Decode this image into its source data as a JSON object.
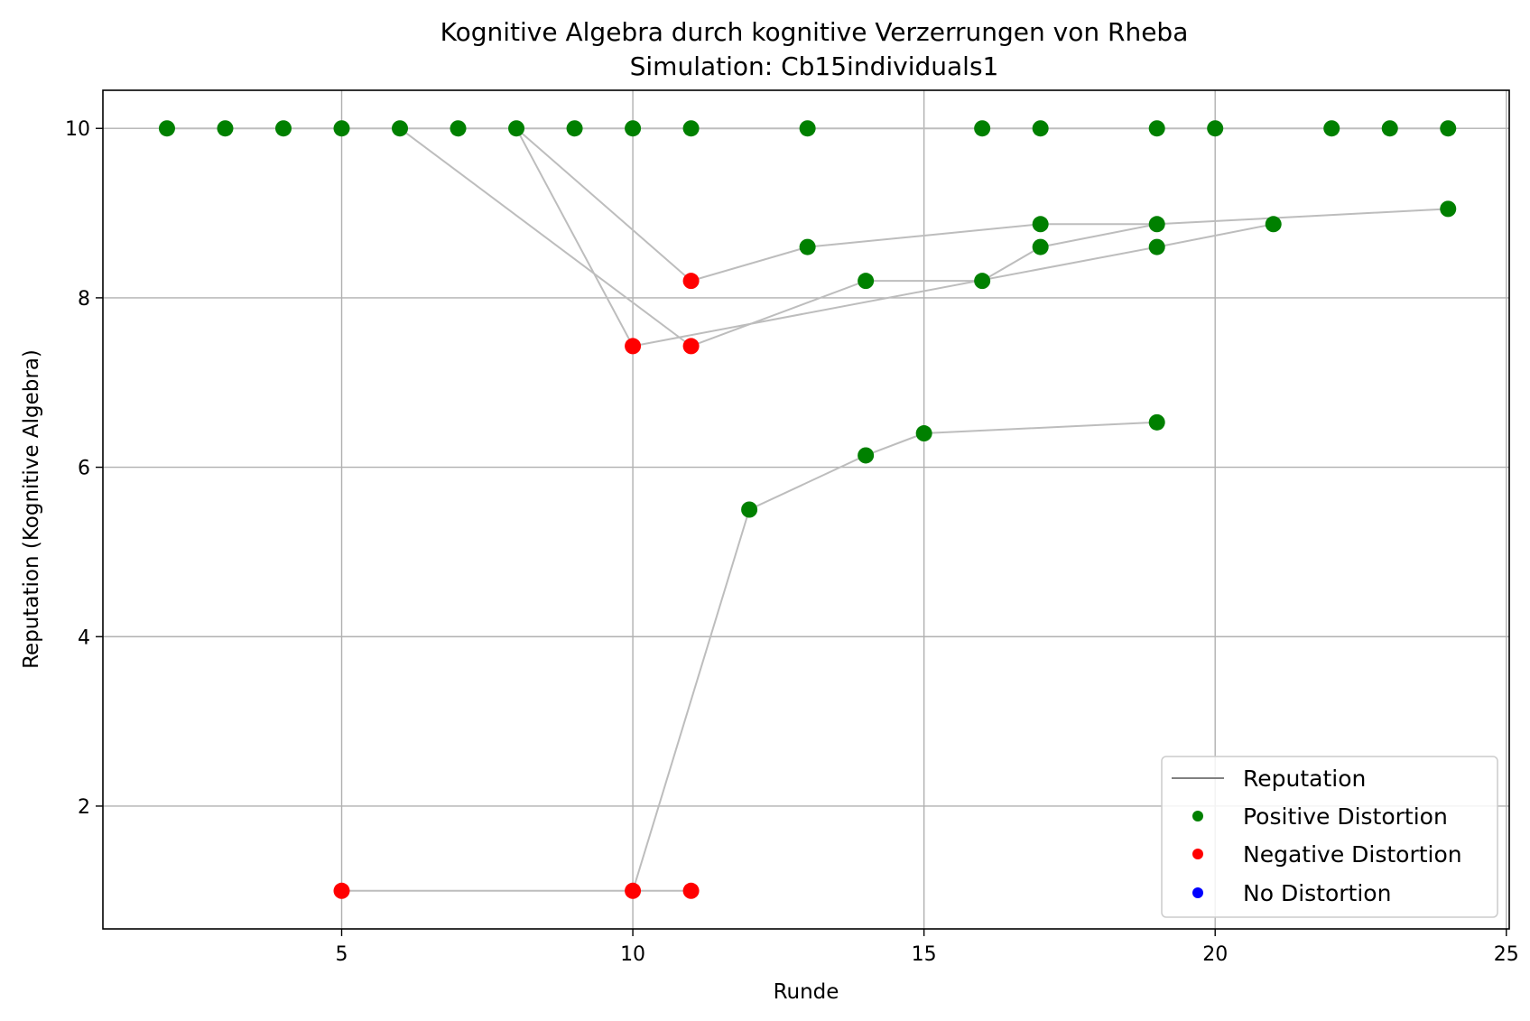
{
  "chart_data": {
    "type": "line",
    "title": "Kognitive Algebra durch kognitive Verzerrungen von Rheba",
    "subtitle": "Simulation: Cb15individuals1",
    "xlabel": "Runde",
    "ylabel": "Reputation (Kognitive Algebra)",
    "xlim": [
      0.9,
      25.05
    ],
    "ylim": [
      0.55,
      10.45
    ],
    "xticks": [
      5,
      10,
      15,
      20,
      25
    ],
    "yticks": [
      2,
      4,
      6,
      8,
      10
    ],
    "grid": true,
    "legend": {
      "position": "lower-right",
      "entries": [
        {
          "label": "Reputation",
          "kind": "line",
          "color": "#808080"
        },
        {
          "label": "Positive Distortion",
          "kind": "marker",
          "color": "#008000"
        },
        {
          "label": "Negative Distortion",
          "kind": "marker",
          "color": "#ff0000"
        },
        {
          "label": "No Distortion",
          "kind": "marker",
          "color": "#0000ff"
        }
      ]
    },
    "line_color": "#bdbdbd",
    "reputation_lines": [
      [
        [
          2,
          10
        ],
        [
          3,
          10
        ],
        [
          4,
          10
        ],
        [
          5,
          10
        ],
        [
          6,
          10
        ],
        [
          7,
          10
        ],
        [
          8,
          10
        ],
        [
          9,
          10
        ],
        [
          10,
          10
        ],
        [
          11,
          10
        ],
        [
          13,
          10
        ],
        [
          16,
          10
        ],
        [
          17,
          10
        ],
        [
          19,
          10
        ],
        [
          20,
          10
        ],
        [
          22,
          10
        ],
        [
          23,
          10
        ],
        [
          24,
          10
        ]
      ],
      [
        [
          6,
          10
        ],
        [
          11,
          7.43
        ],
        [
          14,
          8.2
        ],
        [
          16,
          8.2
        ],
        [
          17,
          8.6
        ],
        [
          19,
          8.87
        ],
        [
          24,
          9.05
        ]
      ],
      [
        [
          8,
          10
        ],
        [
          10,
          7.43
        ],
        [
          19,
          8.6
        ],
        [
          21,
          8.87
        ]
      ],
      [
        [
          8,
          10
        ],
        [
          11,
          8.2
        ],
        [
          13,
          8.6
        ],
        [
          17,
          8.87
        ],
        [
          19,
          8.87
        ]
      ],
      [
        [
          5,
          1
        ],
        [
          10,
          1
        ],
        [
          12,
          5.5
        ],
        [
          14,
          6.14
        ],
        [
          15,
          6.4
        ],
        [
          19,
          6.53
        ]
      ],
      [
        [
          10,
          1
        ],
        [
          11,
          1
        ]
      ]
    ],
    "points": [
      {
        "x": 2,
        "y": 10,
        "distortion": "positive"
      },
      {
        "x": 3,
        "y": 10,
        "distortion": "positive"
      },
      {
        "x": 4,
        "y": 10,
        "distortion": "positive"
      },
      {
        "x": 5,
        "y": 10,
        "distortion": "positive"
      },
      {
        "x": 6,
        "y": 10,
        "distortion": "positive"
      },
      {
        "x": 7,
        "y": 10,
        "distortion": "positive"
      },
      {
        "x": 8,
        "y": 10,
        "distortion": "positive"
      },
      {
        "x": 9,
        "y": 10,
        "distortion": "positive"
      },
      {
        "x": 10,
        "y": 10,
        "distortion": "positive"
      },
      {
        "x": 11,
        "y": 10,
        "distortion": "positive"
      },
      {
        "x": 13,
        "y": 10,
        "distortion": "positive"
      },
      {
        "x": 16,
        "y": 10,
        "distortion": "positive"
      },
      {
        "x": 17,
        "y": 10,
        "distortion": "positive"
      },
      {
        "x": 19,
        "y": 10,
        "distortion": "positive"
      },
      {
        "x": 20,
        "y": 10,
        "distortion": "positive"
      },
      {
        "x": 22,
        "y": 10,
        "distortion": "positive"
      },
      {
        "x": 23,
        "y": 10,
        "distortion": "positive"
      },
      {
        "x": 24,
        "y": 10,
        "distortion": "positive"
      },
      {
        "x": 24,
        "y": 9.05,
        "distortion": "positive"
      },
      {
        "x": 21,
        "y": 8.87,
        "distortion": "positive"
      },
      {
        "x": 19,
        "y": 8.87,
        "distortion": "positive"
      },
      {
        "x": 17,
        "y": 8.87,
        "distortion": "positive"
      },
      {
        "x": 13,
        "y": 8.6,
        "distortion": "positive"
      },
      {
        "x": 17,
        "y": 8.6,
        "distortion": "positive"
      },
      {
        "x": 19,
        "y": 8.6,
        "distortion": "positive"
      },
      {
        "x": 14,
        "y": 8.2,
        "distortion": "positive"
      },
      {
        "x": 16,
        "y": 8.2,
        "distortion": "positive"
      },
      {
        "x": 11,
        "y": 8.2,
        "distortion": "negative"
      },
      {
        "x": 10,
        "y": 7.43,
        "distortion": "negative"
      },
      {
        "x": 11,
        "y": 7.43,
        "distortion": "negative"
      },
      {
        "x": 19,
        "y": 6.53,
        "distortion": "positive"
      },
      {
        "x": 15,
        "y": 6.4,
        "distortion": "positive"
      },
      {
        "x": 14,
        "y": 6.14,
        "distortion": "positive"
      },
      {
        "x": 12,
        "y": 5.5,
        "distortion": "positive"
      },
      {
        "x": 5,
        "y": 1,
        "distortion": "negative"
      },
      {
        "x": 10,
        "y": 1,
        "distortion": "negative"
      },
      {
        "x": 11,
        "y": 1,
        "distortion": "negative"
      }
    ],
    "colors": {
      "positive": "#008000",
      "negative": "#ff0000",
      "none": "#0000ff",
      "grid": "#b0b0b0",
      "axes": "#000000"
    }
  }
}
